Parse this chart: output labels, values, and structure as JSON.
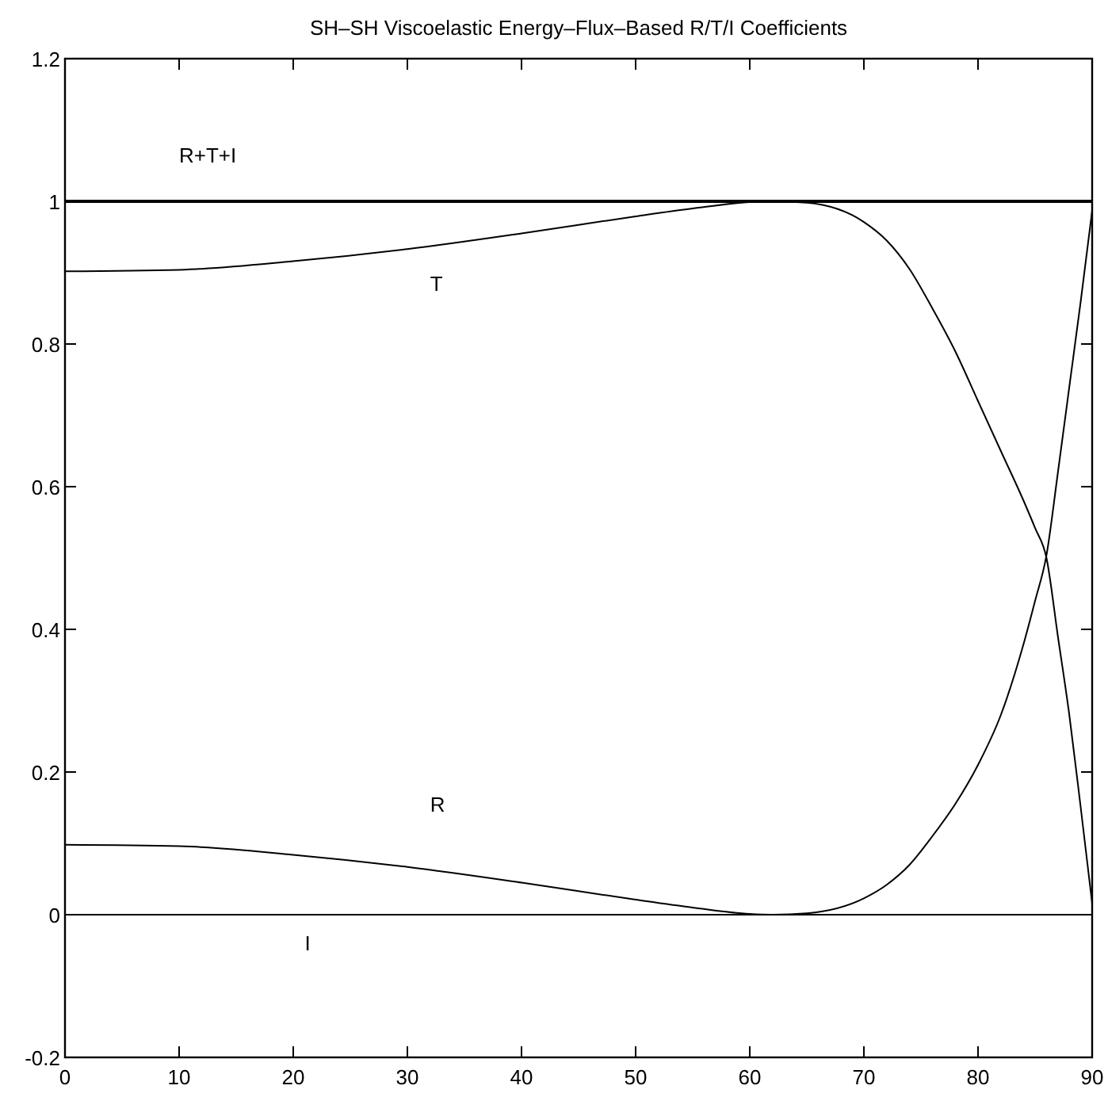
{
  "chart_data": {
    "type": "line",
    "title": "SH–SH Viscoelastic Energy–Flux–Based R/T/I Coefficients",
    "xlim": [
      0,
      90
    ],
    "ylim": [
      -0.2,
      1.2
    ],
    "xticks": [
      0,
      10,
      20,
      30,
      40,
      50,
      60,
      70,
      80,
      90
    ],
    "yticks": [
      -0.2,
      0,
      0.2,
      0.4,
      0.6,
      0.8,
      1,
      1.2
    ],
    "grid": false,
    "line_style": "solid",
    "series": [
      {
        "name": "R+T+I",
        "color": "#000000",
        "x": [
          0,
          90
        ],
        "values": [
          1,
          1
        ]
      },
      {
        "name": "T",
        "color": "#000000",
        "x": [
          0,
          10,
          20,
          30,
          40,
          50,
          55,
          60,
          62,
          65,
          70,
          72,
          74,
          76,
          78,
          80,
          82,
          84,
          85,
          86,
          87,
          88,
          89,
          90
        ],
        "values": [
          0.902,
          0.904,
          0.916,
          0.933,
          0.955,
          0.979,
          0.99,
          0.999,
          1,
          0.998,
          0.971,
          0.945,
          0.905,
          0.85,
          0.79,
          0.72,
          0.65,
          0.58,
          0.542,
          0.5,
          0.39,
          0.28,
          0.15,
          0.016
        ]
      },
      {
        "name": "R",
        "color": "#000000",
        "x": [
          0,
          10,
          20,
          30,
          40,
          50,
          55,
          60,
          62,
          65,
          70,
          72,
          74,
          76,
          78,
          80,
          82,
          84,
          85,
          86,
          87,
          88,
          89,
          90
        ],
        "values": [
          0.098,
          0.096,
          0.084,
          0.067,
          0.045,
          0.021,
          0.01,
          0.001,
          0,
          0.002,
          0.023,
          0.042,
          0.07,
          0.11,
          0.155,
          0.21,
          0.28,
          0.38,
          0.44,
          0.504,
          0.62,
          0.74,
          0.86,
          0.987
        ]
      },
      {
        "name": "I",
        "color": "#000000",
        "x": [
          0,
          90
        ],
        "values": [
          0,
          0
        ]
      }
    ]
  }
}
